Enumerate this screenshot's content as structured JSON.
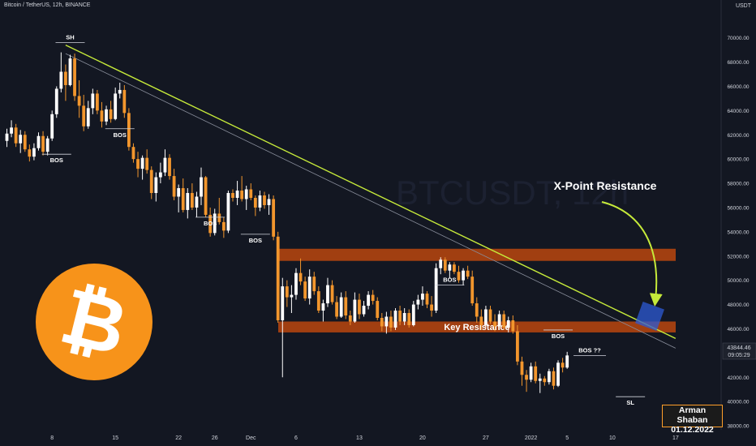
{
  "header": {
    "title": "Bitcoin / TetherUS, 12h, BINANCE"
  },
  "watermark": "BTCUSDT, 12h",
  "colors": {
    "background": "#131722",
    "up": "#ffffff",
    "down": "#f2962d",
    "zone": "#b5460f",
    "trendline": "#c6ea3a",
    "thin_line": "#8a8f9c",
    "marker": "#2e5bd6",
    "coin": "#f7931a"
  },
  "chart_data": {
    "type": "candlestick",
    "symbol": "BTCUSDT",
    "timeframe": "12h",
    "exchange": "BINANCE",
    "y_unit": "USDT",
    "ylim": [
      37000,
      71500
    ],
    "y_ticks": [
      38000,
      40000,
      42000,
      44000,
      46000,
      48000,
      50000,
      52000,
      54000,
      56000,
      58000,
      60000,
      62000,
      64000,
      66000,
      68000,
      70000
    ],
    "y_tick_labels": [
      "38000.00",
      "40000.00",
      "42000.00",
      "44000.00",
      "46000.00",
      "48000.00",
      "50000.00",
      "52000.00",
      "54000.00",
      "56000.00",
      "58000.00",
      "60000.00",
      "62000.00",
      "64000.00",
      "66000.00",
      "68000.00",
      "70000.00"
    ],
    "x_ticks": [
      {
        "label": "8",
        "bar": 10
      },
      {
        "label": "15",
        "bar": 24
      },
      {
        "label": "22",
        "bar": 38
      },
      {
        "label": "26",
        "bar": 46
      },
      {
        "label": "Dec",
        "bar": 54
      },
      {
        "label": "6",
        "bar": 64
      },
      {
        "label": "13",
        "bar": 78
      },
      {
        "label": "20",
        "bar": 92
      },
      {
        "label": "27",
        "bar": 106
      },
      {
        "label": "2022",
        "bar": 116
      },
      {
        "label": "5",
        "bar": 124
      },
      {
        "label": "10",
        "bar": 134
      },
      {
        "label": "17",
        "bar": 148
      }
    ],
    "last_price": "43844.46",
    "countdown": "09:05:29",
    "candles": [
      [
        61500,
        62500,
        61000,
        62100
      ],
      [
        62100,
        63200,
        61800,
        62600
      ],
      [
        62600,
        62900,
        61000,
        61300
      ],
      [
        61300,
        62400,
        60500,
        62000
      ],
      [
        62000,
        62300,
        60600,
        60800
      ],
      [
        60800,
        61200,
        59800,
        60200
      ],
      [
        60200,
        61300,
        59900,
        60900
      ],
      [
        60900,
        62200,
        60700,
        61900
      ],
      [
        61900,
        62300,
        60300,
        60600
      ],
      [
        60600,
        61900,
        60300,
        61700
      ],
      [
        61700,
        64000,
        61500,
        63700
      ],
      [
        63700,
        66000,
        63400,
        65800
      ],
      [
        65800,
        68800,
        65500,
        67200
      ],
      [
        67200,
        67800,
        64800,
        66100
      ],
      [
        66100,
        68600,
        66000,
        68300
      ],
      [
        68300,
        68700,
        64800,
        65200
      ],
      [
        65200,
        66500,
        63400,
        64400
      ],
      [
        64400,
        65300,
        62300,
        62700
      ],
      [
        62700,
        64800,
        62500,
        64200
      ],
      [
        64200,
        65800,
        63700,
        65400
      ],
      [
        65400,
        65700,
        63700,
        64000
      ],
      [
        64000,
        64700,
        62600,
        63100
      ],
      [
        63100,
        64400,
        62800,
        64100
      ],
      [
        64100,
        64800,
        63000,
        63300
      ],
      [
        63300,
        65900,
        63200,
        65400
      ],
      [
        65400,
        66300,
        65000,
        65700
      ],
      [
        65700,
        66100,
        63400,
        63800
      ],
      [
        63800,
        64200,
        60700,
        61000
      ],
      [
        61000,
        61300,
        59700,
        60000
      ],
      [
        60000,
        60600,
        58500,
        59200
      ],
      [
        59200,
        60300,
        58300,
        60100
      ],
      [
        60100,
        60800,
        58800,
        59100
      ],
      [
        59100,
        59400,
        56700,
        57200
      ],
      [
        57200,
        58900,
        56500,
        58500
      ],
      [
        58500,
        59700,
        58000,
        58900
      ],
      [
        58900,
        60800,
        58600,
        60100
      ],
      [
        60100,
        60400,
        58300,
        58600
      ],
      [
        58600,
        59200,
        56600,
        56900
      ],
      [
        56900,
        57900,
        55600,
        57600
      ],
      [
        57600,
        58400,
        55600,
        55800
      ],
      [
        55800,
        57600,
        55100,
        57200
      ],
      [
        57200,
        58000,
        55800,
        56000
      ],
      [
        56000,
        57300,
        55200,
        56900
      ],
      [
        56900,
        59300,
        56200,
        58500
      ],
      [
        58500,
        58600,
        55200,
        55400
      ],
      [
        55400,
        56000,
        53600,
        53900
      ],
      [
        53900,
        55900,
        53700,
        55500
      ],
      [
        55500,
        56800,
        54600,
        54800
      ],
      [
        54800,
        55200,
        53500,
        54100
      ],
      [
        54100,
        57400,
        53900,
        57200
      ],
      [
        57200,
        57500,
        56500,
        56800
      ],
      [
        56800,
        58200,
        56200,
        57400
      ],
      [
        57400,
        58600,
        56500,
        56700
      ],
      [
        56700,
        57800,
        55800,
        57500
      ],
      [
        57500,
        58000,
        56600,
        56800
      ],
      [
        56800,
        57000,
        55300,
        56000
      ],
      [
        56000,
        57400,
        55700,
        57000
      ],
      [
        57000,
        57300,
        55900,
        56200
      ],
      [
        56200,
        57100,
        55400,
        56700
      ],
      [
        56700,
        57000,
        53300,
        53600
      ],
      [
        53600,
        54000,
        46500,
        46700
      ],
      [
        46700,
        50200,
        42000,
        49500
      ],
      [
        49500,
        50000,
        47800,
        48600
      ],
      [
        48600,
        49600,
        47300,
        48800
      ],
      [
        48800,
        51000,
        48400,
        50600
      ],
      [
        50600,
        51800,
        49600,
        49900
      ],
      [
        49900,
        50300,
        48300,
        48500
      ],
      [
        48500,
        50900,
        48000,
        50300
      ],
      [
        50300,
        50700,
        48800,
        49100
      ],
      [
        49100,
        49500,
        47300,
        47500
      ],
      [
        47500,
        48400,
        46600,
        48100
      ],
      [
        48100,
        50200,
        47800,
        49600
      ],
      [
        49600,
        50000,
        48000,
        48200
      ],
      [
        48200,
        48700,
        46800,
        47000
      ],
      [
        47000,
        49000,
        46900,
        48600
      ],
      [
        48600,
        49100,
        46800,
        47100
      ],
      [
        47100,
        47500,
        46300,
        46600
      ],
      [
        46600,
        49000,
        46500,
        48400
      ],
      [
        48400,
        48900,
        46800,
        47200
      ],
      [
        47200,
        48300,
        47000,
        47900
      ],
      [
        47900,
        49100,
        47600,
        48800
      ],
      [
        48800,
        49200,
        48000,
        48300
      ],
      [
        48300,
        48600,
        46700,
        46900
      ],
      [
        46900,
        47300,
        45800,
        46200
      ],
      [
        46200,
        47400,
        45600,
        47000
      ],
      [
        47000,
        47500,
        45800,
        46100
      ],
      [
        46100,
        47700,
        45900,
        47500
      ],
      [
        47500,
        47900,
        46300,
        46600
      ],
      [
        46600,
        47700,
        46300,
        47300
      ],
      [
        47300,
        47600,
        46100,
        46300
      ],
      [
        46300,
        48300,
        46200,
        48000
      ],
      [
        48000,
        48800,
        47600,
        48400
      ],
      [
        48400,
        49500,
        47900,
        48900
      ],
      [
        48900,
        49100,
        47700,
        48000
      ],
      [
        48000,
        48700,
        47000,
        47500
      ],
      [
        47500,
        51400,
        47300,
        51000
      ],
      [
        51000,
        51900,
        50500,
        51700
      ],
      [
        51700,
        51900,
        50600,
        50800
      ],
      [
        50800,
        51500,
        50200,
        51300
      ],
      [
        51300,
        51500,
        50500,
        50700
      ],
      [
        50700,
        51200,
        49800,
        50000
      ],
      [
        50000,
        51000,
        49600,
        50800
      ],
      [
        50800,
        51200,
        50100,
        50300
      ],
      [
        50300,
        50800,
        47900,
        48100
      ],
      [
        48100,
        48600,
        46500,
        47000
      ],
      [
        47000,
        47600,
        45900,
        46300
      ],
      [
        46300,
        47900,
        46100,
        47600
      ],
      [
        47600,
        47900,
        46400,
        46600
      ],
      [
        46600,
        47200,
        45800,
        46200
      ],
      [
        46200,
        47500,
        45900,
        47200
      ],
      [
        47200,
        47500,
        45900,
        46100
      ],
      [
        46100,
        47000,
        45700,
        46700
      ],
      [
        46700,
        47100,
        45600,
        45800
      ],
      [
        45800,
        46300,
        43000,
        43300
      ],
      [
        43300,
        43700,
        41300,
        42200
      ],
      [
        42200,
        42600,
        40800,
        41800
      ],
      [
        41800,
        43200,
        41600,
        42900
      ],
      [
        42900,
        43300,
        41500,
        41700
      ],
      [
        41700,
        42300,
        40700,
        41900
      ],
      [
        41900,
        42100,
        41300,
        41600
      ],
      [
        41600,
        42700,
        41400,
        42500
      ],
      [
        42500,
        42800,
        41000,
        41300
      ],
      [
        41300,
        43400,
        41200,
        43200
      ],
      [
        43200,
        43600,
        42400,
        42800
      ],
      [
        42800,
        44100,
        42700,
        43800
      ]
    ],
    "zones": [
      {
        "name": "upper-resistance",
        "from": 51600,
        "to": 52600
      },
      {
        "name": "key-resistance",
        "from": 45700,
        "to": 46600,
        "label": "Key Resistance"
      }
    ],
    "trendlines": [
      {
        "name": "main-trendline",
        "from": {
          "bar": 13,
          "price": 69400
        },
        "to": {
          "bar": 148,
          "price": 45200
        }
      },
      {
        "name": "thin-trendline",
        "from": {
          "bar": 13,
          "price": 68700
        },
        "to": {
          "bar": 148,
          "price": 44400
        }
      }
    ],
    "markers": [
      {
        "label": "SH",
        "bar": 14,
        "price": 69600,
        "type": "high"
      },
      {
        "label": "BOS",
        "bar": 11,
        "price": 60400,
        "type": "low"
      },
      {
        "label": "BOS",
        "bar": 25,
        "price": 62500,
        "type": "low"
      },
      {
        "label": "BOS",
        "bar": 45,
        "price": 55200,
        "type": "low"
      },
      {
        "label": "BOS",
        "bar": 55,
        "price": 53800,
        "type": "low"
      },
      {
        "label": "BOS",
        "bar": 98,
        "price": 49600,
        "type": "high"
      },
      {
        "label": "BOS",
        "bar": 122,
        "price": 45900,
        "type": "low"
      },
      {
        "label": "BOS ??",
        "bar": 129,
        "price": 43800,
        "type": "high"
      },
      {
        "label": "SL",
        "bar": 138,
        "price": 40400,
        "type": "low"
      }
    ],
    "annotations": [
      {
        "text": "X-Point Resistance"
      }
    ]
  },
  "author": {
    "name": "Arman Shaban",
    "date": "01.12.2022"
  }
}
